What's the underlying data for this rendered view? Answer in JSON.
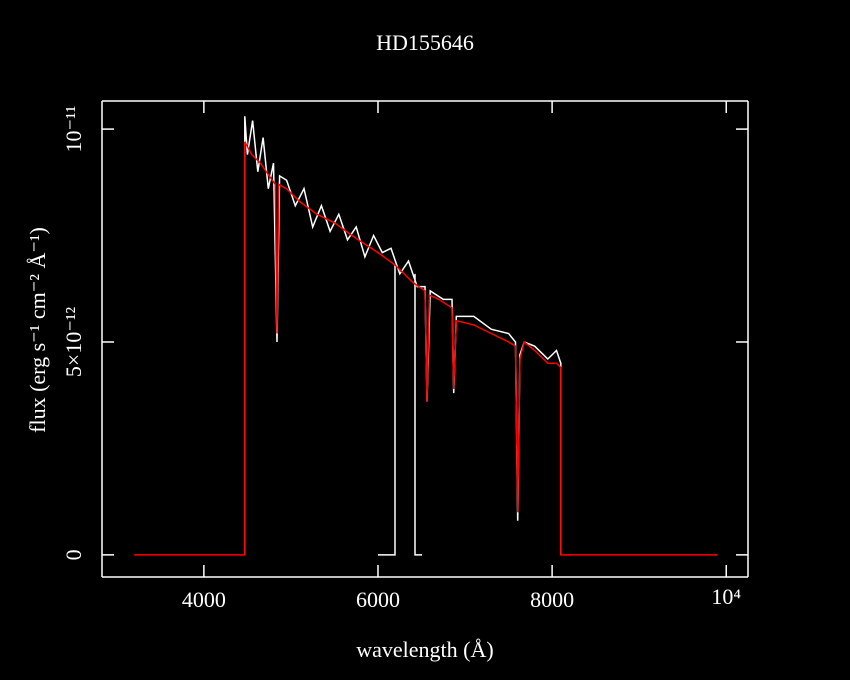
{
  "chart_data": {
    "type": "line",
    "title": "HD155646",
    "xlabel": "wavelength (Å)",
    "ylabel": "flux (erg s⁻¹ cm⁻² Å⁻¹)",
    "xlim": [
      2830,
      10250
    ],
    "ylim": [
      -5.2e-13,
      1.066e-11
    ],
    "xticks": [
      4000,
      6000,
      8000,
      {
        "value": 10000,
        "label": "10⁴"
      }
    ],
    "yticks": [
      0,
      {
        "value": 5e-12,
        "label": "5×10⁻¹²"
      },
      {
        "value": 1e-11,
        "label": "10⁻¹¹"
      }
    ],
    "series": [
      {
        "color": "#ffffff",
        "x": [
          4470,
          4470,
          4500,
          4560,
          4620,
          4680,
          4740,
          4800,
          4840,
          4870,
          4950,
          5050,
          5150,
          5250,
          5350,
          5450,
          5550,
          5650,
          5750,
          5850,
          5950,
          6050,
          6150,
          6250,
          6350,
          6450,
          6540,
          6563,
          6600,
          6750,
          6850,
          6870,
          6900,
          7100,
          7300,
          7500,
          7580,
          7605,
          7630,
          7680,
          7800,
          7950,
          8050,
          8100,
          8100,
          null,
          6000,
          6195,
          6195,
          null,
          6425,
          6425,
          6505
        ],
        "values": [
          0,
          1.03e-11,
          9.4e-12,
          1.02e-11,
          9e-12,
          9.8e-12,
          8.6e-12,
          9.2e-12,
          5e-12,
          8.9e-12,
          8.8e-12,
          8.2e-12,
          8.6e-12,
          7.7e-12,
          8.2e-12,
          7.6e-12,
          8e-12,
          7.4e-12,
          7.7e-12,
          7e-12,
          7.5e-12,
          7.1e-12,
          7.2e-12,
          6.6e-12,
          6.9e-12,
          6.3e-12,
          6.3e-12,
          3.6e-12,
          6.2e-12,
          6e-12,
          6e-12,
          3.8e-12,
          5.6e-12,
          5.6e-12,
          5.3e-12,
          5.2e-12,
          5e-12,
          8e-13,
          4.7e-12,
          5e-12,
          4.9e-12,
          4.6e-12,
          4.8e-12,
          4.5e-12,
          0,
          null,
          0,
          0,
          6.8e-12,
          null,
          6.6e-12,
          0,
          0
        ]
      },
      {
        "color": "#ff0000",
        "x": [
          3200,
          4470,
          4470,
          4550,
          4650,
          4750,
          4820,
          4840,
          4860,
          4950,
          5100,
          5300,
          5500,
          5700,
          5850,
          6000,
          6200,
          6400,
          6540,
          6563,
          6590,
          6700,
          6850,
          6870,
          6900,
          7100,
          7300,
          7500,
          7580,
          7605,
          7630,
          7680,
          7800,
          7950,
          8050,
          8100,
          8100,
          9900
        ],
        "values": [
          0,
          0,
          9.7e-12,
          9.4e-12,
          9.2e-12,
          8.9e-12,
          8.7e-12,
          5.2e-12,
          8.7e-12,
          8.6e-12,
          8.3e-12,
          8e-12,
          7.8e-12,
          7.5e-12,
          7.3e-12,
          7.1e-12,
          6.8e-12,
          6.4e-12,
          6.2e-12,
          3.6e-12,
          6.1e-12,
          6e-12,
          5.8e-12,
          3.9e-12,
          5.5e-12,
          5.4e-12,
          5.2e-12,
          5e-12,
          4.9e-12,
          1e-12,
          4.6e-12,
          5e-12,
          4.8e-12,
          4.5e-12,
          4.5e-12,
          4.4e-12,
          0,
          0
        ]
      }
    ]
  }
}
